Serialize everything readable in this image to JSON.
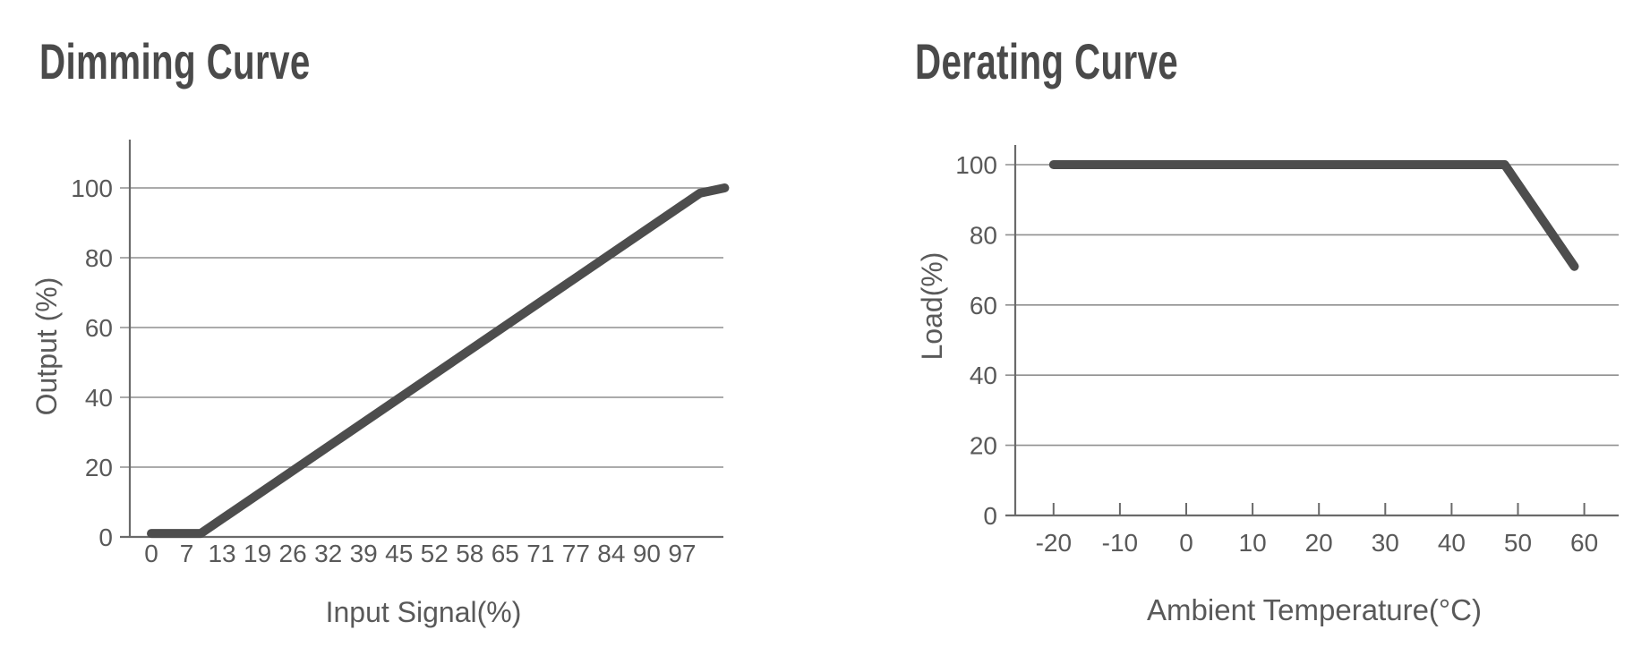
{
  "page": {
    "background": "#ffffff"
  },
  "colors": {
    "title": "#4a4a4a",
    "curve": "#4d4d4d",
    "grid": "#8f8f8f",
    "axis": "#6a6a6a",
    "tick_text": "#595959"
  },
  "chart_data": [
    {
      "id": "dimming-curve",
      "type": "line",
      "title": "Dimming Curve",
      "xlabel": "Input Signal(%)",
      "ylabel": "Output (%)",
      "x_tick_labels": [
        "0",
        "7",
        "13",
        "19",
        "26",
        "32",
        "39",
        "45",
        "52",
        "58",
        "65",
        "71",
        "77",
        "84",
        "90",
        "97"
      ],
      "y_tick_labels": [
        "0",
        "20",
        "40",
        "60",
        "80",
        "100"
      ],
      "y_tick_values": [
        0,
        20,
        40,
        60,
        80,
        100
      ],
      "xlim": [
        0,
        105
      ],
      "ylim": [
        0,
        115
      ],
      "grid": true,
      "points": [
        [
          0,
          1
        ],
        [
          9,
          1
        ],
        [
          100,
          98.5
        ],
        [
          104.5,
          100
        ]
      ]
    },
    {
      "id": "derating-curve",
      "type": "line",
      "title": "Derating Curve",
      "xlabel": "Ambient Temperature(°C)",
      "ylabel": "Load(%)",
      "x_tick_labels": [
        "-20",
        "-10",
        "0",
        "10",
        "20",
        "30",
        "40",
        "50",
        "60"
      ],
      "x_tick_values": [
        -20,
        -10,
        0,
        10,
        20,
        30,
        40,
        50,
        60
      ],
      "y_tick_labels": [
        "0",
        "20",
        "40",
        "60",
        "80",
        "100"
      ],
      "y_tick_values": [
        0,
        20,
        40,
        60,
        80,
        100
      ],
      "xlim": [
        -25,
        71
      ],
      "ylim": [
        0,
        106
      ],
      "grid": true,
      "points": [
        [
          -20,
          100
        ],
        [
          48,
          100
        ],
        [
          58.5,
          71
        ]
      ]
    }
  ]
}
